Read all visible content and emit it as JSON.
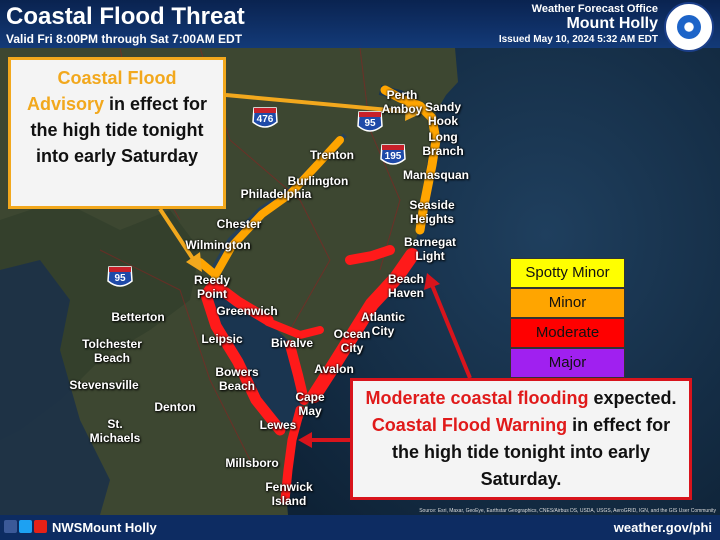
{
  "header": {
    "title": "Coastal Flood Threat",
    "valid": "Valid Fri 8:00PM through Sat 7:00AM EDT",
    "office_line1": "Weather Forecast Office",
    "office_line2": "Mount Holly",
    "issued": "Issued May 10, 2024 5:32 AM EDT"
  },
  "advisory_callout": {
    "segments": [
      {
        "text": "Coastal Flood Advisory",
        "highlight": true
      },
      {
        "text": "in effect for the high tide tonight into early Saturday",
        "highlight": false
      }
    ]
  },
  "warning_callout": {
    "segments": [
      {
        "text": "Moderate coastal flooding",
        "highlight": true
      },
      {
        "text": "expected.",
        "highlight": false
      },
      {
        "text": "Coastal Flood Warning",
        "highlight": true
      },
      {
        "text": "in effect for the high tide tonight into early Saturday.",
        "highlight": false
      }
    ]
  },
  "legend": [
    {
      "label": "Spotty Minor",
      "color": "#ffff00"
    },
    {
      "label": "Minor",
      "color": "#ffa500"
    },
    {
      "label": "Moderate",
      "color": "#ff0000"
    },
    {
      "label": "Major",
      "color": "#a020f0"
    }
  ],
  "places": [
    "Perth Amboy",
    "Sandy Hook",
    "Long Branch",
    "Manasquan",
    "Seaside Heights",
    "Barnegat Light",
    "Beach Haven",
    "Atlantic City",
    "Ocean City",
    "Avalon",
    "Cape May",
    "Lewes",
    "Millsboro",
    "Fenwick Island",
    "Trenton",
    "Burlington",
    "Philadelphia",
    "Chester",
    "Wilmington",
    "Reedy Point",
    "Greenwich",
    "Leipsic",
    "Bivalve",
    "Bowers Beach",
    "Betterton",
    "Tolchester Beach",
    "Stevensville",
    "Denton",
    "St. Michaels"
  ],
  "highways": [
    "476",
    "95",
    "195",
    "95"
  ],
  "footer": {
    "handle": "NWSMount Holly",
    "website": "weather.gov/phi",
    "sources": "Source: Esri, Maxar, GeoEye, Earthstar Geographics, CNES/Airbus DS, USDA, USGS, AeroGRID, IGN, and the GIS User Community"
  }
}
